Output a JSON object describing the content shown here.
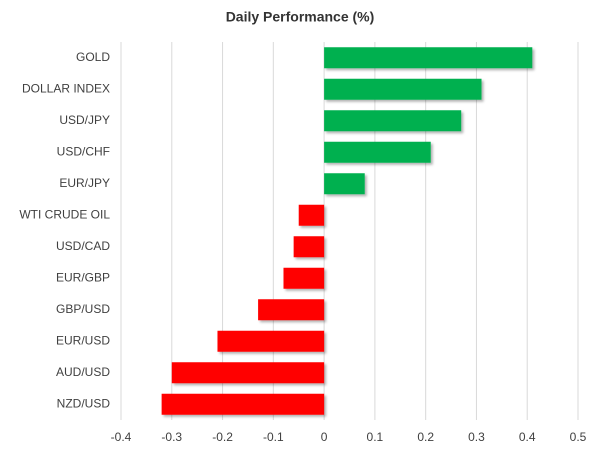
{
  "chart_data": {
    "type": "hbar",
    "title": "Daily Performance (%)",
    "categories": [
      "GOLD",
      "DOLLAR INDEX",
      "USD/JPY",
      "USD/CHF",
      "EUR/JPY",
      "WTI CRUDE OIL",
      "USD/CAD",
      "EUR/GBP",
      "GBP/USD",
      "EUR/USD",
      "AUD/USD",
      "NZD/USD"
    ],
    "values": [
      0.41,
      0.31,
      0.27,
      0.21,
      0.08,
      -0.05,
      -0.06,
      -0.08,
      -0.13,
      -0.21,
      -0.3,
      -0.32
    ],
    "positive_color": "#00b050",
    "negative_color": "#ff0000",
    "xlim": [
      -0.4,
      0.5
    ],
    "xticks": [
      -0.4,
      -0.3,
      -0.2,
      -0.1,
      0,
      0.1,
      0.2,
      0.3,
      0.4,
      0.5
    ],
    "grid": true
  }
}
